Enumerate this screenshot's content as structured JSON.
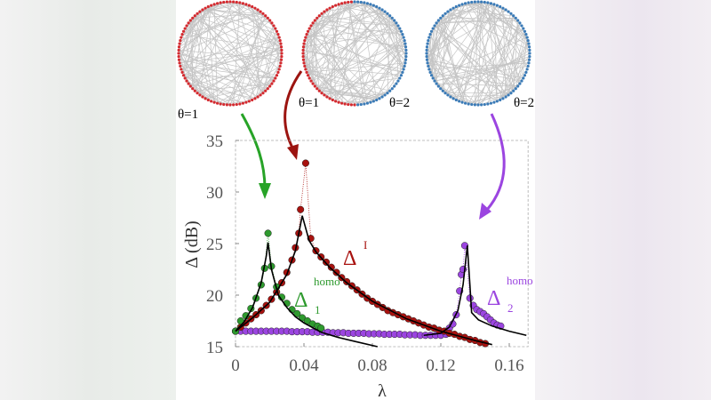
{
  "networks": [
    {
      "left_label": "θ=1",
      "right_label": "",
      "colors": [
        "#d42a2f"
      ]
    },
    {
      "left_label": "θ=1",
      "right_label": "θ=2",
      "colors": [
        "#d42a2f",
        "#3b7bb7"
      ]
    },
    {
      "left_label": "",
      "right_label": "θ=2",
      "colors": [
        "#3b7bb7"
      ]
    }
  ],
  "edge_color": "#c4c4c4",
  "chart_data": {
    "type": "scatter",
    "title": "",
    "xlabel": "λ",
    "ylabel": "Δ (dB)",
    "xlim": [
      0,
      0.171
    ],
    "ylim": [
      15,
      35
    ],
    "xticks": [
      "0",
      "0.04",
      "0.08",
      "0.12",
      "0.16"
    ],
    "xtick_values": [
      0,
      0.04,
      0.08,
      0.12,
      0.16
    ],
    "yticks": [
      "15",
      "20",
      "25",
      "30",
      "35"
    ],
    "ytick_values": [
      15,
      20,
      25,
      30,
      35
    ],
    "grid": false,
    "series": [
      {
        "label": "Δ",
        "sup": "homo",
        "sub": "1",
        "color": "#2e9a2e",
        "x": [
          0,
          0.003,
          0.006,
          0.009,
          0.012,
          0.015,
          0.017,
          0.019,
          0.021,
          0.024,
          0.027,
          0.03,
          0.033,
          0.036,
          0.039,
          0.042,
          0.045,
          0.048,
          0.05
        ],
        "y": [
          16.5,
          17.5,
          18.0,
          18.7,
          19.7,
          21.0,
          22.6,
          26.0,
          22.8,
          20.8,
          19.8,
          19.2,
          18.6,
          18.2,
          17.8,
          17.5,
          17.2,
          17.0,
          16.8
        ],
        "fit_x": [
          0,
          0.005,
          0.01,
          0.015,
          0.018,
          0.019,
          0.021,
          0.025,
          0.03,
          0.035,
          0.04,
          0.05,
          0.06,
          0.07,
          0.083
        ],
        "fit_y": [
          16.5,
          17.4,
          18.8,
          21.2,
          23.8,
          25.1,
          22.5,
          20.0,
          18.8,
          17.9,
          17.3,
          16.4,
          15.9,
          15.5,
          15.0
        ]
      },
      {
        "label": "Δ",
        "sup": "I",
        "sub": "",
        "color": "#a8120f",
        "x": [
          0,
          0.003,
          0.006,
          0.009,
          0.012,
          0.015,
          0.018,
          0.021,
          0.024,
          0.027,
          0.03,
          0.033,
          0.035,
          0.037,
          0.038,
          0.041,
          0.044,
          0.047,
          0.05,
          0.053,
          0.056,
          0.059,
          0.062,
          0.065,
          0.068,
          0.071,
          0.074,
          0.077,
          0.08,
          0.083,
          0.086,
          0.089,
          0.092,
          0.095,
          0.098,
          0.101,
          0.104,
          0.107,
          0.11,
          0.113,
          0.116,
          0.119,
          0.122,
          0.125,
          0.128,
          0.131,
          0.134,
          0.137,
          0.14,
          0.143,
          0.146
        ],
        "y": [
          16.5,
          16.9,
          17.3,
          17.7,
          18.1,
          18.5,
          19.0,
          19.6,
          20.3,
          21.2,
          22.2,
          23.4,
          24.6,
          26.0,
          28.3,
          32.8,
          25.5,
          24.3,
          23.7,
          23.2,
          22.7,
          22.2,
          21.7,
          21.3,
          20.9,
          20.5,
          20.1,
          19.7,
          19.4,
          19.1,
          18.8,
          18.5,
          18.3,
          18.1,
          17.9,
          17.7,
          17.5,
          17.3,
          17.1,
          16.9,
          16.8,
          16.6,
          16.5,
          16.3,
          16.2,
          16.0,
          15.9,
          15.7,
          15.6,
          15.4,
          15.3
        ],
        "fit_x": [
          0,
          0.01,
          0.02,
          0.03,
          0.035,
          0.039,
          0.043,
          0.047,
          0.055,
          0.065,
          0.08,
          0.1,
          0.12,
          0.14,
          0.15
        ],
        "fit_y": [
          16.5,
          17.8,
          19.3,
          22.0,
          24.3,
          27.7,
          25.3,
          24.2,
          22.7,
          21.2,
          19.4,
          17.7,
          16.5,
          15.6,
          15.2
        ]
      },
      {
        "label": "Δ",
        "sup": "homo",
        "sub": "2",
        "color": "#9b45e0",
        "x": [
          0,
          0.003,
          0.006,
          0.009,
          0.012,
          0.015,
          0.018,
          0.021,
          0.024,
          0.027,
          0.03,
          0.033,
          0.036,
          0.039,
          0.042,
          0.045,
          0.048,
          0.051,
          0.054,
          0.057,
          0.06,
          0.063,
          0.066,
          0.069,
          0.072,
          0.075,
          0.078,
          0.081,
          0.084,
          0.087,
          0.09,
          0.093,
          0.096,
          0.099,
          0.102,
          0.105,
          0.108,
          0.111,
          0.114,
          0.117,
          0.12,
          0.123,
          0.125,
          0.127,
          0.129,
          0.131,
          0.132,
          0.133,
          0.134,
          0.137,
          0.139,
          0.141,
          0.143,
          0.145,
          0.147,
          0.149,
          0.151,
          0.153,
          0.155
        ],
        "y": [
          16.5,
          16.5,
          16.5,
          16.5,
          16.5,
          16.5,
          16.5,
          16.5,
          16.5,
          16.5,
          16.5,
          16.45,
          16.45,
          16.45,
          16.45,
          16.4,
          16.4,
          16.4,
          16.4,
          16.35,
          16.35,
          16.35,
          16.3,
          16.3,
          16.3,
          16.3,
          16.25,
          16.25,
          16.25,
          16.2,
          16.2,
          16.2,
          16.2,
          16.15,
          16.15,
          16.15,
          16.1,
          16.1,
          16.1,
          16.1,
          16.1,
          16.2,
          16.8,
          17.2,
          18.1,
          20.4,
          22.0,
          22.5,
          24.8,
          19.7,
          19.0,
          18.6,
          18.4,
          18.2,
          17.9,
          17.6,
          17.3,
          17.1,
          17.0
        ],
        "fit_x": [
          0.11,
          0.12,
          0.125,
          0.13,
          0.133,
          0.1355,
          0.137,
          0.138,
          0.142,
          0.15,
          0.16,
          0.17
        ],
        "fit_y": [
          16.1,
          16.3,
          16.9,
          18.5,
          21.0,
          24.8,
          21.0,
          18.3,
          17.6,
          17.0,
          16.5,
          16.1
        ]
      }
    ]
  }
}
